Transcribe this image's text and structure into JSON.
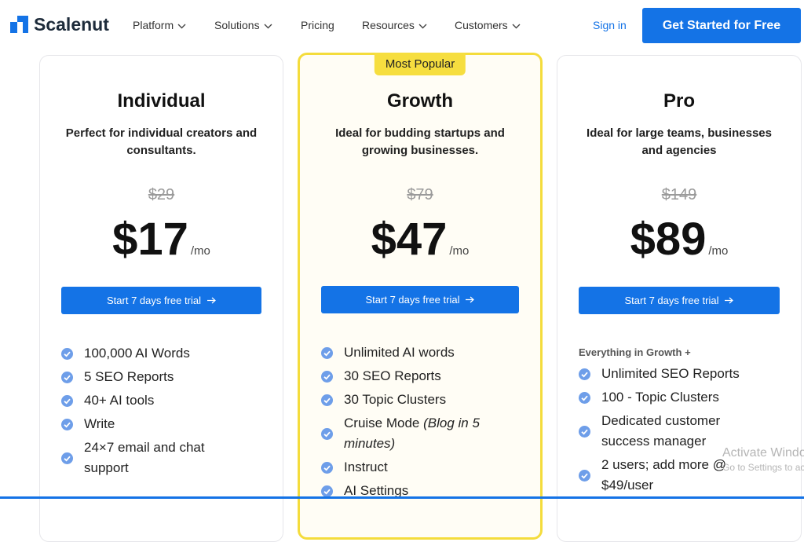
{
  "nav": {
    "brand": "Scalenut",
    "items": [
      "Platform",
      "Solutions",
      "Pricing",
      "Resources",
      "Customers"
    ],
    "sign_in": "Sign in",
    "cta": "Get Started for Free"
  },
  "plans": [
    {
      "name": "Individual",
      "description": "Perfect for individual creators and consultants.",
      "old_price": "$29",
      "price": "$17",
      "period": "/mo",
      "button": "Start 7 days free trial",
      "features": [
        "100,000 AI Words",
        "5 SEO Reports",
        "40+ AI tools",
        "Write",
        "24×7 email and chat support"
      ]
    },
    {
      "badge": "Most Popular",
      "name": "Growth",
      "description": "Ideal for budding startups and growing businesses.",
      "old_price": "$79",
      "price": "$47",
      "period": "/mo",
      "button": "Start 7 days free trial",
      "features": [
        "Unlimited AI words",
        "30 SEO Reports",
        "30 Topic Clusters",
        {
          "text": "Cruise Mode",
          "note": "(Blog in 5 minutes)"
        },
        "Instruct",
        "AI Settings"
      ]
    },
    {
      "name": "Pro",
      "description": "Ideal for large teams, businesses and agencies",
      "old_price": "$149",
      "price": "$89",
      "period": "/mo",
      "button": "Start 7 days free trial",
      "features_heading": "Everything in Growth +",
      "features": [
        "Unlimited SEO Reports",
        "100 - Topic Clusters",
        "Dedicated customer success manager",
        "2 users; add more @ $49/user"
      ]
    }
  ],
  "watermark": {
    "title": "Activate Windows",
    "subtitle": "Go to Settings to activate Windows."
  }
}
